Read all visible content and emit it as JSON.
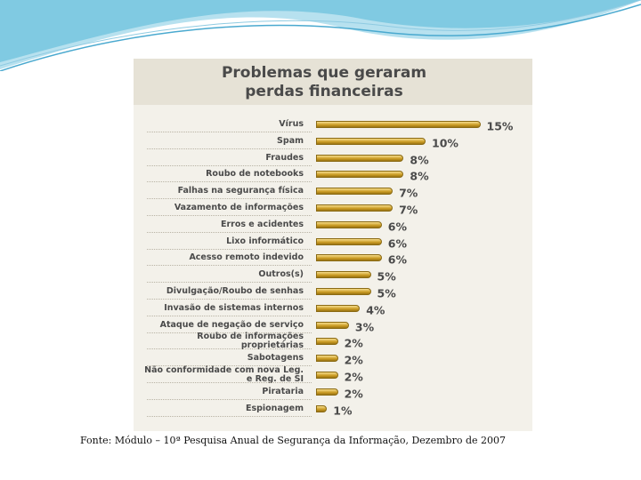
{
  "chart_data": {
    "type": "bar",
    "orientation": "horizontal",
    "title": "Problemas que geraram perdas financeiras",
    "categories": [
      "Vírus",
      "Spam",
      "Fraudes",
      "Roubo de notebooks",
      "Falhas na segurança física",
      "Vazamento de informações",
      "Erros e acidentes",
      "Lixo informático",
      "Acesso remoto indevido",
      "Outros(s)",
      "Divulgação/Roubo de senhas",
      "Invasão de sistemas internos",
      "Ataque de negação de serviço",
      "Roubo de informações proprietárias",
      "Sabotagens",
      "Não conformidade com nova Leg. e Reg. de SI",
      "Pirataria",
      "Espionagem"
    ],
    "values": [
      15,
      10,
      8,
      8,
      7,
      7,
      6,
      6,
      6,
      5,
      5,
      4,
      3,
      2,
      2,
      2,
      2,
      1
    ],
    "value_labels": [
      "15%",
      "10%",
      "8%",
      "8%",
      "7%",
      "7%",
      "6%",
      "6%",
      "6%",
      "5%",
      "5%",
      "4%",
      "3%",
      "2%",
      "2%",
      "2%",
      "2%",
      "1%"
    ],
    "color": "#c99a22",
    "source": "Fonte: Módulo – 10ª Pesquisa Anual de Segurança da Informação, Dezembro de 2007"
  }
}
